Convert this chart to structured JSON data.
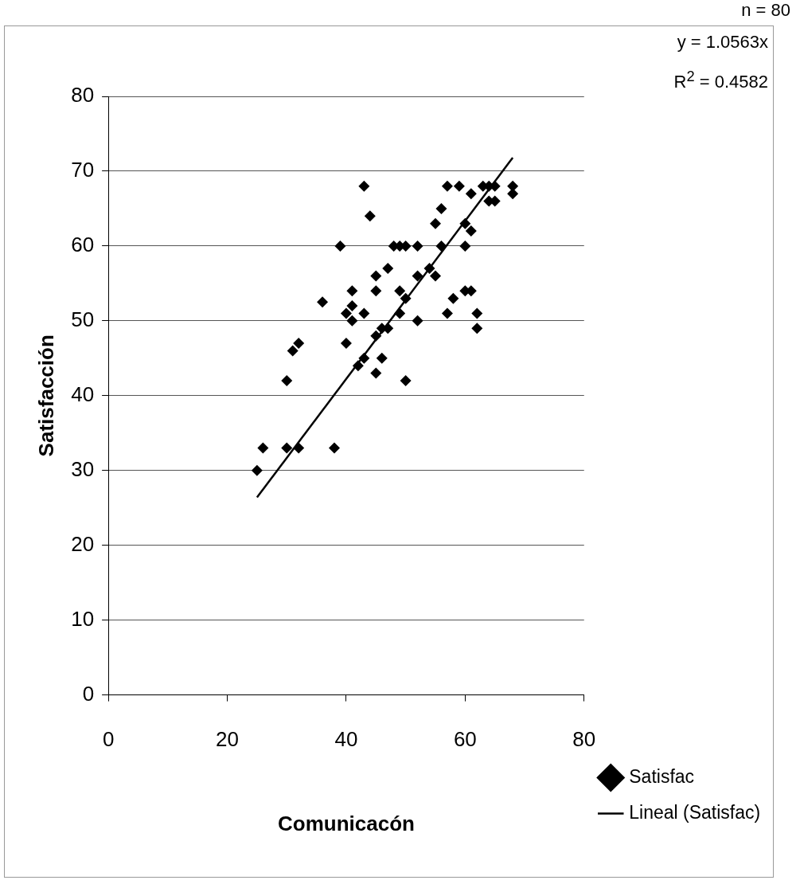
{
  "chart_data": {
    "type": "scatter",
    "xlabel": "Comunicacón",
    "ylabel": "Satisfacción",
    "xlim": [
      0,
      80
    ],
    "xticks": [
      0,
      20,
      40,
      60,
      80
    ],
    "ylim": [
      0,
      80
    ],
    "yticks": [
      0,
      10,
      20,
      30,
      40,
      50,
      60,
      70,
      80
    ],
    "grid": "y",
    "legend": "right",
    "marker": "diamond",
    "annotations": [
      "n = 80",
      "y = 1.0563x",
      "R$^{2}$ = 0.4582"
    ],
    "series": [
      {
        "name": "Satisfac",
        "type": "scatter",
        "color": "#000000",
        "x": [
          25,
          26,
          30,
          32,
          38,
          30,
          31,
          32,
          36,
          39,
          40,
          40,
          41,
          41,
          41,
          42,
          43,
          43,
          43,
          44,
          45,
          45,
          45,
          45,
          46,
          46,
          47,
          47,
          48,
          49,
          49,
          49,
          50,
          50,
          50,
          52,
          52,
          52,
          54,
          55,
          55,
          56,
          56,
          57,
          57,
          58,
          59,
          60,
          60,
          60,
          61,
          61,
          62,
          62,
          63,
          64,
          64,
          65,
          65,
          68,
          68,
          61
        ],
        "values": [
          30,
          33,
          33,
          33,
          33,
          42,
          46,
          47,
          52.5,
          60,
          47,
          51,
          50,
          52,
          54,
          44,
          45,
          51,
          68,
          64,
          43,
          48,
          54,
          56,
          45,
          49,
          57,
          49,
          60,
          60,
          51,
          54,
          60,
          53,
          42,
          60,
          56,
          50,
          57,
          56,
          63,
          65,
          60,
          51,
          68,
          53,
          68,
          60,
          63,
          54,
          54,
          62,
          51,
          49,
          68,
          66,
          68,
          66,
          68,
          67,
          68,
          67
        ]
      },
      {
        "name": "Lineal (Satisfac)",
        "type": "line",
        "color": "#000000",
        "line_style": "solid",
        "marker": "none",
        "x": [
          25,
          68
        ],
        "values": [
          26.4,
          71.8
        ]
      }
    ]
  }
}
